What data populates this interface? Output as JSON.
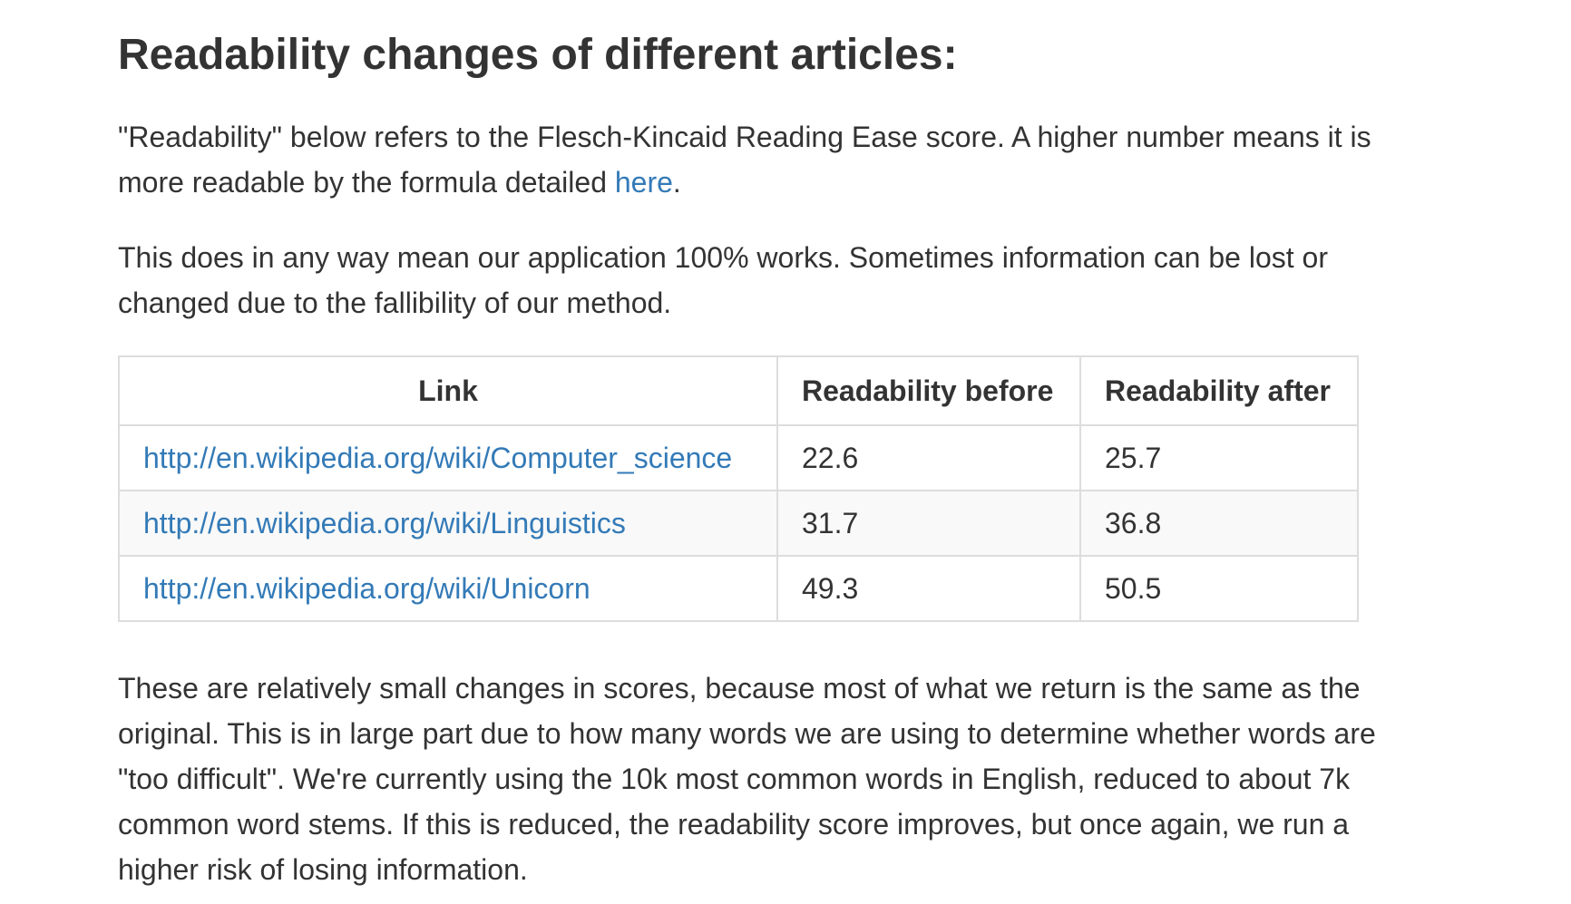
{
  "heading": "Readability changes of different articles:",
  "intro": {
    "text_before_link": "\"Readability\" below refers to the Flesch-Kincaid Reading Ease score. A higher number means it is more readable by the formula detailed ",
    "link_text": "here",
    "text_after_link": "."
  },
  "disclaimer": "This does in any way mean our application 100% works. Sometimes information can be lost or changed due to the fallibility of our method.",
  "table": {
    "headers": [
      "Link",
      "Readability before",
      "Readability after"
    ],
    "rows": [
      {
        "link": "http://en.wikipedia.org/wiki/Computer_science",
        "before": "22.6",
        "after": "25.7"
      },
      {
        "link": "http://en.wikipedia.org/wiki/Linguistics",
        "before": "31.7",
        "after": "36.8"
      },
      {
        "link": "http://en.wikipedia.org/wiki/Unicorn",
        "before": "49.3",
        "after": "50.5"
      }
    ]
  },
  "conclusion": "These are relatively small changes in scores, because most of what we return is the same as the original. This is in large part due to how many words we are using to determine whether words are \"too difficult\". We're currently using the 10k most common words in English, reduced to about 7k common word stems. If this is reduced, the readability score improves, but once again, we run a higher risk of losing information.",
  "colors": {
    "text": "#333333",
    "link": "#337ab7",
    "table_border": "#dddddd",
    "striped_row": "#f9f9f9"
  }
}
